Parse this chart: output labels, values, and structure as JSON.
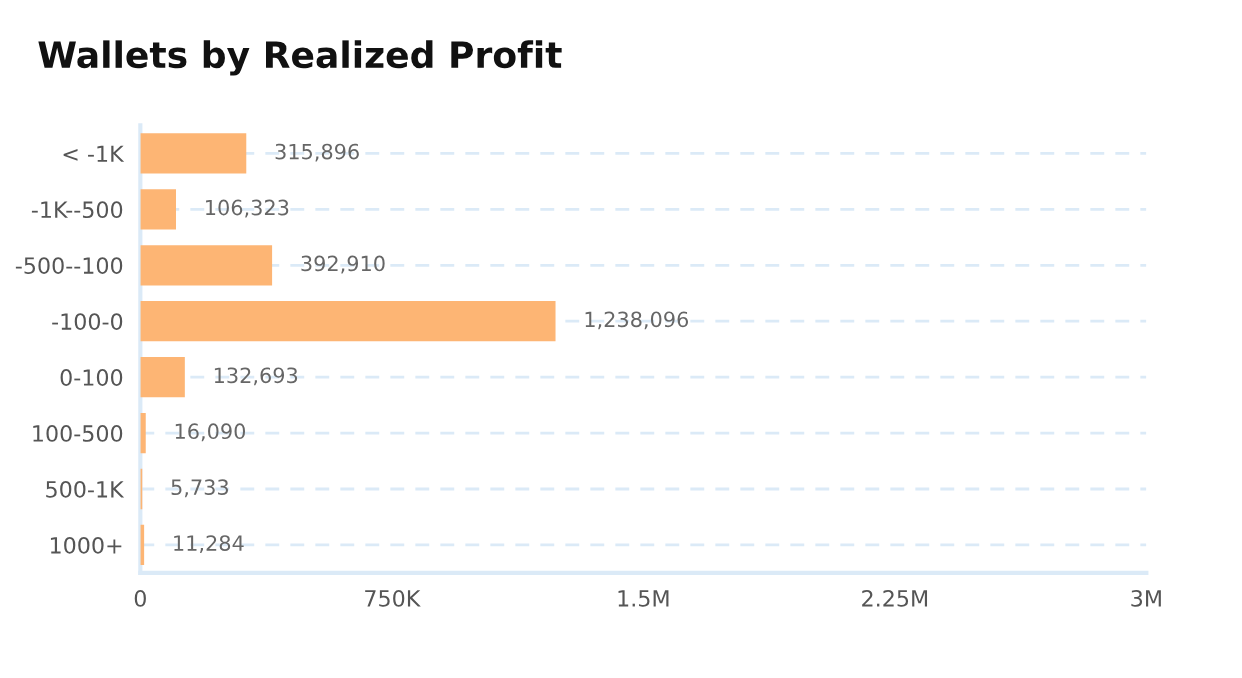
{
  "chart_data": {
    "type": "bar",
    "orientation": "horizontal",
    "title": "Wallets by Realized Profit",
    "categories": [
      "< -1K",
      "-1K--500",
      "-500--100",
      "-100-0",
      "0-100",
      "100-500",
      "500-1K",
      "1000+"
    ],
    "values": [
      315896,
      106323,
      392910,
      1238096,
      132693,
      16090,
      5733,
      11284
    ],
    "color": "#fdb574",
    "xlim": [
      0,
      3000000
    ],
    "xticks": [
      0,
      {
        "value": 750000,
        "label": "750K"
      },
      {
        "value": 1500000,
        "label": "1.5M"
      },
      {
        "value": 2250000,
        "label": "2.25M"
      },
      {
        "value": 3000000,
        "label": "3M"
      }
    ],
    "value_labels": [
      "315,896",
      "106,323",
      "392,910",
      "1,238,096",
      "132,693",
      "16,090",
      "5,733",
      "11,284"
    ],
    "grid": "y",
    "legend": false
  }
}
